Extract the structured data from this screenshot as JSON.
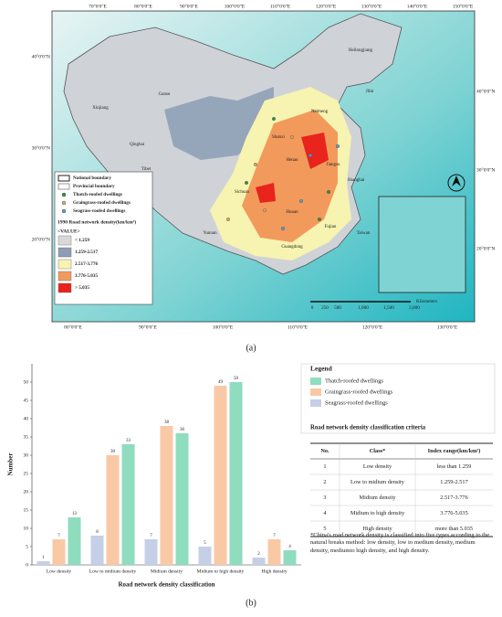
{
  "map": {
    "lon_top": [
      "70°0'0\"E",
      "80°0'0\"E",
      "90°0'0\"E",
      "100°0'0\"E",
      "110°0'0\"E",
      "120°0'0\"E",
      "130°0'0\"E",
      "140°0'0\"E",
      "150°0'0\"E"
    ],
    "lon_bottom": [
      "80°0'0\"E",
      "90°0'0\"E",
      "100°0'0\"E",
      "110°0'0\"E",
      "120°0'0\"E",
      "130°0'0\"E"
    ],
    "lat_left": [
      "40°0'0\"N",
      "30°0'0\"N",
      "20°0'0\"N"
    ],
    "lat_right": [
      "40°0'0\"N",
      "30°0'0\"N",
      "20°0'0\"N"
    ],
    "places": [
      "Xinjiang",
      "Tibet",
      "Qinghai",
      "Gansu",
      "Neimeng",
      "Heilongjiang",
      "Jilin",
      "Sichuan",
      "Yunnan",
      "Hunan",
      "Jiangsu",
      "Shanghai",
      "Fujian",
      "Taiwan",
      "Guangdong",
      "Henan",
      "Shanxi"
    ],
    "legend": [
      "National boundary",
      "Provincial boundary",
      "Thatch-roofed dwellings",
      "Graingrass-roofed dwellings",
      "Seagrass-roofed dwellings"
    ],
    "density_title": "1990 Road network density(km/km²)",
    "value_header": "<VALUE>",
    "classes": [
      "< 1.259",
      "1.259-2.517",
      "2.517-3.776",
      "3.776-5.035",
      "> 5.035"
    ],
    "class_colors": [
      "#d9d9d9",
      "#8c9db5",
      "#f7f3b0",
      "#f29a5c",
      "#e8241c"
    ],
    "scale": [
      "0",
      "250",
      "500",
      "1,000",
      "1,500",
      "2,000"
    ],
    "scale_unit": "Kilometers",
    "caption": "(a)"
  },
  "chart_data": {
    "type": "bar",
    "y_label": "Number",
    "x_label": "Road network density classification",
    "categories": [
      "Low density",
      "Low to midium density",
      "Midium density",
      "Midium to high density",
      "High density"
    ],
    "series": [
      {
        "name": "Thatch-roofed dwellings",
        "color": "#8fdcbf",
        "values": [
          13,
          33,
          36,
          50,
          4
        ]
      },
      {
        "name": "Graingrass-roofed dwellings",
        "color": "#f9c9a6",
        "values": [
          7,
          30,
          38,
          49,
          7
        ]
      },
      {
        "name": "Seagrass-roofed dwellings",
        "color": "#c5cfe6",
        "values": [
          1,
          8,
          7,
          5,
          2
        ]
      }
    ],
    "ylim": [
      0,
      55
    ],
    "yticks": [
      0,
      5,
      10,
      15,
      20,
      25,
      30,
      35,
      40,
      45,
      50
    ],
    "legend_title": "Legend",
    "caption": "(b)"
  },
  "table": {
    "title": "Road network density classification criteria",
    "header": [
      "No.",
      "Class*",
      "Index range(km/km²)"
    ],
    "rows": [
      [
        "1",
        "Low density",
        "less than 1.259"
      ],
      [
        "2",
        "Low to midium density",
        "1.259-2.517"
      ],
      [
        "3",
        "Midium density",
        "2.517-3.776"
      ],
      [
        "4",
        "Midium to high density",
        "3.776-5.035"
      ],
      [
        "5",
        "High density",
        "more than 5.035"
      ]
    ],
    "note": "*China's road network density is classified into five types according to the natural breaks method: low density, low to medium density, medium density, mediumto high density, and high density."
  }
}
